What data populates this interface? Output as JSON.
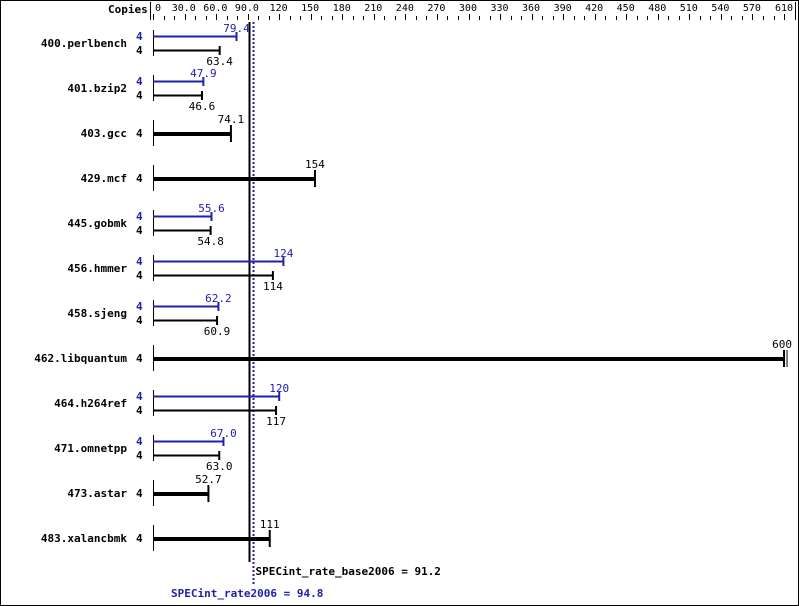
{
  "chart_data": {
    "type": "bar",
    "orientation": "horizontal",
    "axis_header": "Copies",
    "xlim": [
      0,
      610
    ],
    "ticks": [
      "0",
      "30.0",
      "60.0",
      "90.0",
      "120",
      "150",
      "180",
      "210",
      "240",
      "270",
      "300",
      "330",
      "360",
      "390",
      "420",
      "450",
      "480",
      "510",
      "540",
      "570",
      "610"
    ],
    "tick_values": [
      0,
      30,
      60,
      90,
      120,
      150,
      180,
      210,
      240,
      270,
      300,
      330,
      360,
      390,
      420,
      450,
      480,
      510,
      540,
      570,
      610
    ],
    "colors": {
      "base": "#000000",
      "peak": "#2020b0"
    },
    "benchmarks": [
      {
        "name": "400.perlbench",
        "copies_peak": "4",
        "copies_base": "4",
        "peak": 79.4,
        "base": 63.4
      },
      {
        "name": "401.bzip2",
        "copies_peak": "4",
        "copies_base": "4",
        "peak": 47.9,
        "base": 46.6
      },
      {
        "name": "403.gcc",
        "copies_base": "4",
        "base": 74.1
      },
      {
        "name": "429.mcf",
        "copies_base": "4",
        "base": 154
      },
      {
        "name": "445.gobmk",
        "copies_peak": "4",
        "copies_base": "4",
        "peak": 55.6,
        "base": 54.8
      },
      {
        "name": "456.hmmer",
        "copies_peak": "4",
        "copies_base": "4",
        "peak": 124,
        "base": 114
      },
      {
        "name": "458.sjeng",
        "copies_peak": "4",
        "copies_base": "4",
        "peak": 62.2,
        "base": 60.9
      },
      {
        "name": "462.libquantum",
        "copies_base": "4",
        "base": 600
      },
      {
        "name": "464.h264ref",
        "copies_peak": "4",
        "copies_base": "4",
        "peak": 120,
        "base": 117
      },
      {
        "name": "471.omnetpp",
        "copies_peak": "4",
        "copies_base": "4",
        "peak": 67.0,
        "base": 63.0
      },
      {
        "name": "473.astar",
        "copies_base": "4",
        "base": 52.7
      },
      {
        "name": "483.xalancbmk",
        "copies_base": "4",
        "base": 111
      }
    ],
    "base_summary": {
      "label": "SPECint_rate_base2006 = 91.2",
      "value": 91.2
    },
    "peak_summary": {
      "label": "SPECint_rate2006 = 94.8",
      "value": 94.8
    }
  }
}
